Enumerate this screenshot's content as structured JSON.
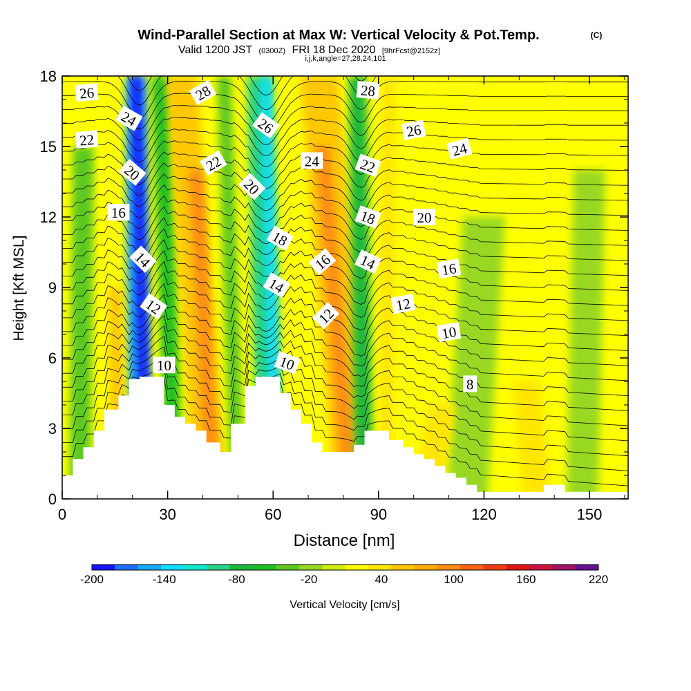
{
  "titles": {
    "main": "Wind-Parallel Section at Max W: Vertical Velocity & Pot.Temp.",
    "main_mark": "(C)",
    "valid_prefix": "Valid 1200 JST",
    "valid_utc": "(0300Z)",
    "valid_date": "FRI 18 Dec 2020",
    "valid_fcst": "[9hrFcst@2152z]",
    "ijk": "i,j,k,angle=27,28,24,101"
  },
  "colorbar": {
    "label": "Vertical Velocity [cm/s]",
    "colors": [
      "#1414ff",
      "#1f6fff",
      "#16a8ff",
      "#10e0ff",
      "#10e8d0",
      "#28d288",
      "#1cb83c",
      "#20c020",
      "#5cc820",
      "#98d820",
      "#d0ec10",
      "#ffff00",
      "#ffe600",
      "#ffc800",
      "#ffaa00",
      "#ff8c14",
      "#ff6414",
      "#f03c14",
      "#e01414",
      "#c8143c",
      "#a01464",
      "#641490"
    ],
    "ticks": [
      "-200",
      "-140",
      "-80",
      "-20",
      "40",
      "100",
      "160",
      "220"
    ]
  },
  "chart_data": {
    "type": "heatmap",
    "title": "Wind-Parallel Section at Max W: Vertical Velocity & Pot.Temp.",
    "xlabel": "Distance [nm]",
    "ylabel": "Height [Kft MSL]",
    "xlim": [
      0,
      161
    ],
    "ylim": [
      0,
      18
    ],
    "xticks": [
      "0",
      "30",
      "60",
      "90",
      "120",
      "150"
    ],
    "yticks": [
      "0",
      "3",
      "6",
      "9",
      "12",
      "15",
      "18"
    ],
    "colorscale_range": [
      -200,
      220
    ],
    "colorscale_unit": "cm/s",
    "background_level": 10,
    "velocity_bands": [
      {
        "x_bottom": 22,
        "x_top": 21,
        "h_top": 18,
        "width": 6,
        "value": -160
      },
      {
        "x_bottom": 24,
        "x_top": 21,
        "h_top": 18,
        "width": 3,
        "value": -200
      },
      {
        "x_bottom": 32,
        "x_top": 28,
        "h_top": 18,
        "width": 5,
        "value": -60
      },
      {
        "x_bottom": 42,
        "x_top": 34,
        "h_top": 18,
        "width": 9,
        "value": 50
      },
      {
        "x_bottom": 43,
        "x_top": 38,
        "h_top": 14,
        "width": 4,
        "value": 100
      },
      {
        "x_bottom": 50,
        "x_top": 46,
        "h_top": 18,
        "width": 4,
        "value": -40
      },
      {
        "x_bottom": 59,
        "x_top": 56,
        "h_top": 18,
        "width": 7,
        "value": -100
      },
      {
        "x_bottom": 61,
        "x_top": 58,
        "h_top": 18,
        "width": 3,
        "value": -140
      },
      {
        "x_bottom": 83,
        "x_top": 73,
        "h_top": 18,
        "width": 11,
        "value": 55
      },
      {
        "x_bottom": 82,
        "x_top": 74,
        "h_top": 15,
        "width": 4,
        "value": 90
      },
      {
        "x_bottom": 86,
        "x_top": 84,
        "h_top": 18,
        "width": 5,
        "value": -80
      },
      {
        "x_bottom": 92,
        "x_top": 93,
        "h_top": 18,
        "width": 4,
        "value": 30
      },
      {
        "x_bottom": 5,
        "x_top": 6,
        "h_top": 15,
        "width": 6,
        "value": -30
      },
      {
        "x_bottom": 16,
        "x_top": 15,
        "h_top": 9,
        "width": 4,
        "value": 60
      },
      {
        "x_bottom": 115,
        "x_top": 120,
        "h_top": 12,
        "width": 12,
        "value": -20
      },
      {
        "x_bottom": 148,
        "x_top": 150,
        "h_top": 14,
        "width": 9,
        "value": -20
      },
      {
        "x_bottom": 135,
        "x_top": 132,
        "h_top": 5,
        "width": 8,
        "value": 30
      },
      {
        "x_bottom": 104,
        "x_top": 108,
        "h_top": 4,
        "width": 8,
        "value": 30
      }
    ],
    "terrain": [
      {
        "x": 0,
        "h": 1.0
      },
      {
        "x": 3,
        "h": 1.7
      },
      {
        "x": 6,
        "h": 2.2
      },
      {
        "x": 9,
        "h": 2.9
      },
      {
        "x": 12,
        "h": 3.8
      },
      {
        "x": 16,
        "h": 4.4
      },
      {
        "x": 19,
        "h": 5.1
      },
      {
        "x": 22,
        "h": 5.2
      },
      {
        "x": 26,
        "h": 5.2
      },
      {
        "x": 29,
        "h": 4.0
      },
      {
        "x": 32,
        "h": 3.5
      },
      {
        "x": 35,
        "h": 3.2
      },
      {
        "x": 38,
        "h": 2.9
      },
      {
        "x": 41,
        "h": 2.4
      },
      {
        "x": 45,
        "h": 2.0
      },
      {
        "x": 48,
        "h": 3.2
      },
      {
        "x": 52,
        "h": 4.8
      },
      {
        "x": 55,
        "h": 5.2
      },
      {
        "x": 58,
        "h": 5.2
      },
      {
        "x": 62,
        "h": 4.5
      },
      {
        "x": 65,
        "h": 3.8
      },
      {
        "x": 68,
        "h": 3.2
      },
      {
        "x": 71,
        "h": 2.4
      },
      {
        "x": 74,
        "h": 2.0
      },
      {
        "x": 77,
        "h": 2.0
      },
      {
        "x": 80,
        "h": 2.0
      },
      {
        "x": 83,
        "h": 2.3
      },
      {
        "x": 86,
        "h": 2.9
      },
      {
        "x": 89,
        "h": 2.9
      },
      {
        "x": 93,
        "h": 2.5
      },
      {
        "x": 97,
        "h": 2.2
      },
      {
        "x": 100,
        "h": 1.9
      },
      {
        "x": 103,
        "h": 1.7
      },
      {
        "x": 106,
        "h": 1.4
      },
      {
        "x": 109,
        "h": 1.1
      },
      {
        "x": 112,
        "h": 0.9
      },
      {
        "x": 115,
        "h": 0.6
      },
      {
        "x": 118,
        "h": 0.3
      },
      {
        "x": 136,
        "h": 0.3
      },
      {
        "x": 137,
        "h": 0.6
      },
      {
        "x": 142,
        "h": 0.6
      },
      {
        "x": 143,
        "h": 0.3
      },
      {
        "x": 161,
        "h": 0.3
      }
    ],
    "isentrope_dips": [
      {
        "x": 22,
        "dip": 1.6,
        "width": 5
      },
      {
        "x": 58,
        "dip": 1.8,
        "width": 6
      },
      {
        "x": 85,
        "dip": 1.2,
        "width": 4
      }
    ],
    "contour_labels": [
      {
        "text": "26",
        "x": 7,
        "y": 17.3,
        "angle": -5
      },
      {
        "text": "22",
        "x": 7,
        "y": 15.3,
        "angle": -5
      },
      {
        "text": "24",
        "x": 19,
        "y": 16.2,
        "angle": 30
      },
      {
        "text": "20",
        "x": 20,
        "y": 13.9,
        "angle": 40
      },
      {
        "text": "16",
        "x": 16,
        "y": 12.2,
        "angle": 0
      },
      {
        "text": "14",
        "x": 23,
        "y": 10.2,
        "angle": 45
      },
      {
        "text": "12",
        "x": 26,
        "y": 8.2,
        "angle": 35
      },
      {
        "text": "10",
        "x": 29,
        "y": 5.7,
        "angle": 0
      },
      {
        "text": "28",
        "x": 40,
        "y": 17.3,
        "angle": -30
      },
      {
        "text": "22",
        "x": 43,
        "y": 14.3,
        "angle": -30
      },
      {
        "text": "26",
        "x": 58,
        "y": 15.9,
        "angle": 35
      },
      {
        "text": "20",
        "x": 54,
        "y": 13.3,
        "angle": 45
      },
      {
        "text": "18",
        "x": 62,
        "y": 11.1,
        "angle": 30
      },
      {
        "text": "14",
        "x": 61,
        "y": 9.1,
        "angle": 30
      },
      {
        "text": "10",
        "x": 64,
        "y": 5.8,
        "angle": 20
      },
      {
        "text": "24",
        "x": 71,
        "y": 14.4,
        "angle": 0
      },
      {
        "text": "16",
        "x": 74,
        "y": 10.1,
        "angle": -40
      },
      {
        "text": "12",
        "x": 75,
        "y": 7.8,
        "angle": -45
      },
      {
        "text": "28",
        "x": 87,
        "y": 17.4,
        "angle": 5
      },
      {
        "text": "22",
        "x": 87,
        "y": 14.2,
        "angle": 20
      },
      {
        "text": "18",
        "x": 87,
        "y": 12.0,
        "angle": 20
      },
      {
        "text": "14",
        "x": 87,
        "y": 10.1,
        "angle": 25
      },
      {
        "text": "12",
        "x": 97,
        "y": 8.3,
        "angle": -10
      },
      {
        "text": "26",
        "x": 100,
        "y": 15.7,
        "angle": -10
      },
      {
        "text": "20",
        "x": 103,
        "y": 12.0,
        "angle": 0
      },
      {
        "text": "16",
        "x": 110,
        "y": 9.8,
        "angle": -10
      },
      {
        "text": "10",
        "x": 110,
        "y": 7.1,
        "angle": -10
      },
      {
        "text": "24",
        "x": 113,
        "y": 14.9,
        "angle": -15
      },
      {
        "text": "8",
        "x": 116,
        "y": 4.9,
        "angle": 0
      }
    ]
  }
}
